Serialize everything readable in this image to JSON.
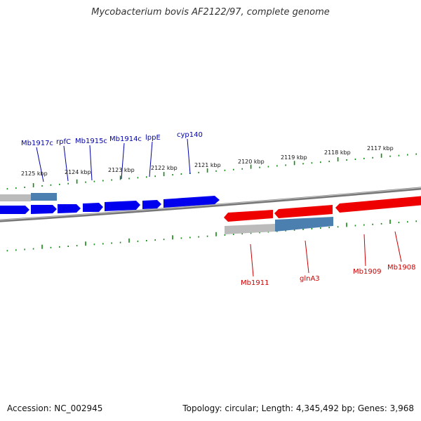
{
  "title": "Mycobacterium bovis AF2122/97, complete genome",
  "footer": {
    "accession": "Accession: NC_002945",
    "topology": "Topology: circular; Length: 4,345,492 bp; Genes: 3,968"
  },
  "colors": {
    "forward_strand": "#0000ee",
    "reverse_strand": "#ee0000",
    "scale_ticks": "#118811",
    "backbone": "#777777",
    "region_grey": "#bbbbbb",
    "region_blue": "#4a7fb0"
  },
  "scale_labels": [
    "2125 kbp",
    "2124 kbp",
    "2123 kbp",
    "2122 kbp",
    "2121 kbp",
    "2120 kbp",
    "2119 kbp",
    "2118 kbp",
    "2117 kbp"
  ],
  "forward_genes": [
    "Mb1917c",
    "rpfC",
    "Mb1915c",
    "Mb1914c",
    "lppE",
    "cyp140"
  ],
  "reverse_genes": [
    "Mb1911",
    "glnA3",
    "Mb1909",
    "Mb1908"
  ]
}
